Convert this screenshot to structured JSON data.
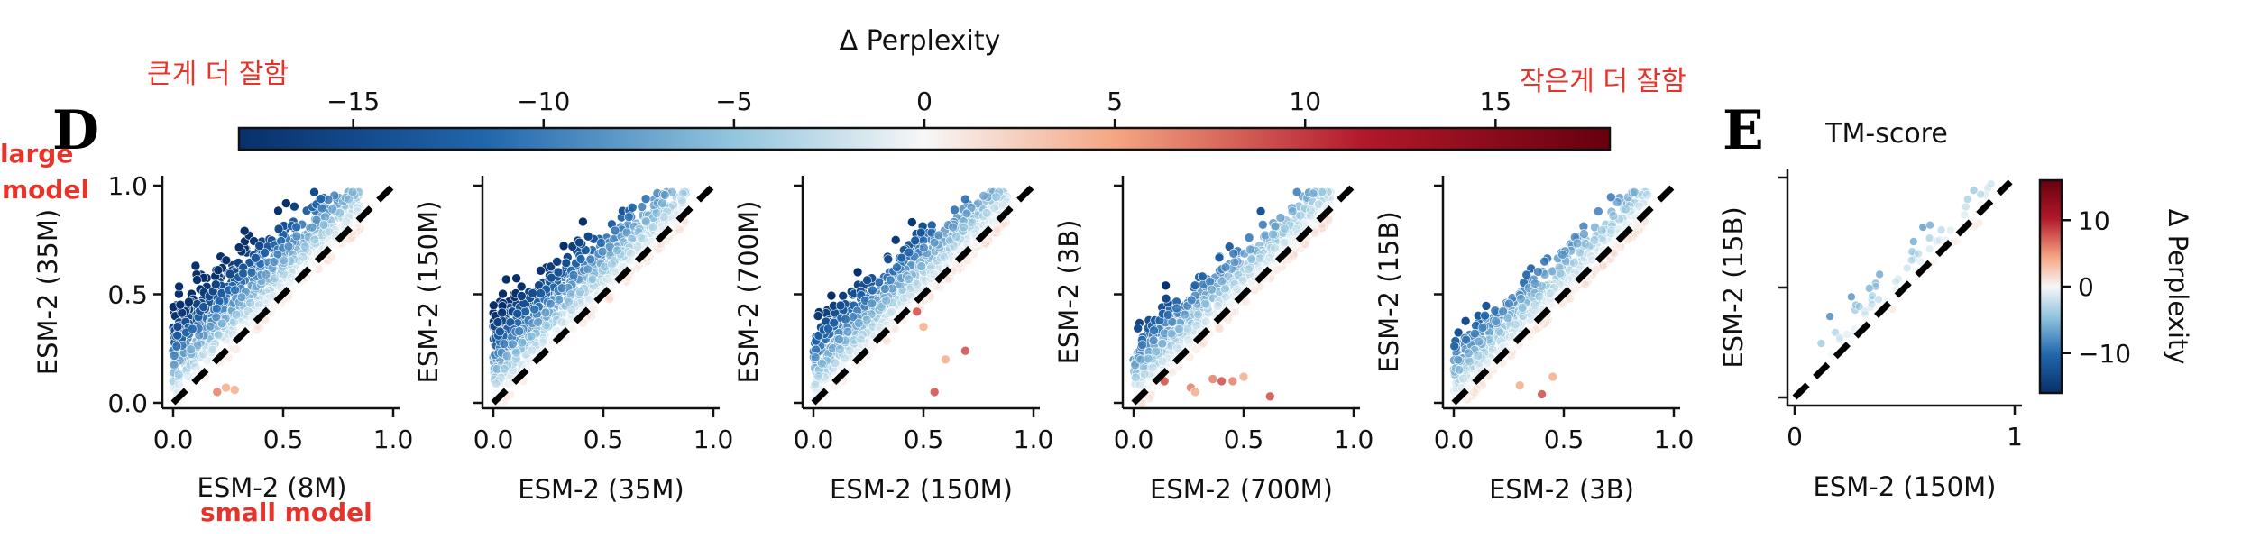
{
  "annotations": {
    "large_better": "큰게 더 잘함",
    "small_better": "작은게 더 잘함",
    "large_model": "large\nmodel",
    "large_model_line1": "large",
    "large_model_line2": "model",
    "small_model": "small model"
  },
  "panel_letters": {
    "d": "D",
    "e": "E"
  },
  "colors": {
    "cmap_low": "#08306b",
    "cmap_mid": "#f7f7f7",
    "cmap_high": "#67000d",
    "annotation": "#e8332a",
    "diagonal": "#000000"
  },
  "chart_data": [
    {
      "type": "colorbar",
      "name": "top-colorbar",
      "title": "Δ Perplexity",
      "range": [
        -18,
        18
      ],
      "ticks": [
        -15,
        -10,
        -5,
        0,
        5,
        10,
        15
      ],
      "tick_labels": [
        "−15",
        "−10",
        "−5",
        "0",
        "5",
        "10",
        "15"
      ]
    },
    {
      "type": "scatter",
      "name": "scatter-8m-vs-35m",
      "xlabel": "ESM-2 (8M)",
      "ylabel": "ESM-2 (35M)",
      "xlim": [
        -0.05,
        1.05
      ],
      "ylim": [
        -0.05,
        1.0
      ],
      "xticks": [
        0,
        0.5,
        1.0
      ],
      "xtick_labels": [
        "0.0",
        "0.5",
        "1.0"
      ],
      "yticks": [
        0,
        0.5,
        1.0
      ],
      "ytick_labels": [
        "0.0",
        "0.5",
        "1.0"
      ],
      "diagonal": true,
      "cloud": {
        "n": 950,
        "xmax": 0.85,
        "lift": 0.42,
        "spread": 0.22,
        "seed": 11
      },
      "outliers": [
        [
          0.2,
          0.05,
          3
        ],
        [
          0.24,
          0.07,
          2
        ],
        [
          0.28,
          0.06,
          2
        ]
      ]
    },
    {
      "type": "scatter",
      "name": "scatter-35m-vs-150m",
      "xlabel": "ESM-2 (35M)",
      "ylabel": "ESM-2 (150M)",
      "xlim": [
        -0.05,
        1.05
      ],
      "ylim": [
        -0.05,
        1.0
      ],
      "xticks": [
        0,
        0.5,
        1.0
      ],
      "xtick_labels": [
        "0.0",
        "0.5",
        "1.0"
      ],
      "yticks": [
        0,
        0.5,
        1.0
      ],
      "ytick_labels": [],
      "diagonal": true,
      "cloud": {
        "n": 1000,
        "xmax": 0.88,
        "lift": 0.36,
        "spread": 0.2,
        "seed": 23
      },
      "outliers": []
    },
    {
      "type": "scatter",
      "name": "scatter-150m-vs-700m",
      "xlabel": "ESM-2 (150M)",
      "ylabel": "ESM-2 (700M)",
      "xlim": [
        -0.05,
        1.05
      ],
      "ylim": [
        -0.05,
        1.0
      ],
      "xticks": [
        0,
        0.5,
        1.0
      ],
      "xtick_labels": [
        "0.0",
        "0.5",
        "1.0"
      ],
      "yticks": [
        0,
        0.5,
        1.0
      ],
      "ytick_labels": [],
      "diagonal": true,
      "cloud": {
        "n": 950,
        "xmax": 0.88,
        "lift": 0.3,
        "spread": 0.2,
        "seed": 37
      },
      "outliers": [
        [
          0.47,
          0.42,
          4
        ],
        [
          0.55,
          0.05,
          4
        ],
        [
          0.69,
          0.24,
          4
        ],
        [
          0.5,
          0.35,
          2
        ],
        [
          0.6,
          0.2,
          2
        ]
      ]
    },
    {
      "type": "scatter",
      "name": "scatter-700m-vs-3b",
      "xlabel": "ESM-2 (700M)",
      "ylabel": "ESM-2 (3B)",
      "xlim": [
        -0.05,
        1.05
      ],
      "ylim": [
        -0.05,
        1.0
      ],
      "xticks": [
        0,
        0.5,
        1.0
      ],
      "xtick_labels": [
        "0.0",
        "0.5",
        "1.0"
      ],
      "yticks": [
        0,
        0.5,
        1.0
      ],
      "ytick_labels": [],
      "diagonal": true,
      "cloud": {
        "n": 780,
        "xmax": 0.9,
        "lift": 0.22,
        "spread": 0.22,
        "seed": 41
      },
      "outliers": [
        [
          0.14,
          0.1,
          4
        ],
        [
          0.26,
          0.07,
          3
        ],
        [
          0.36,
          0.11,
          3
        ],
        [
          0.4,
          0.1,
          4
        ],
        [
          0.45,
          0.1,
          3
        ],
        [
          0.62,
          0.03,
          4
        ],
        [
          0.28,
          0.05,
          2
        ],
        [
          0.5,
          0.12,
          2
        ]
      ]
    },
    {
      "type": "scatter",
      "name": "scatter-3b-vs-15b",
      "xlabel": "ESM-2 (3B)",
      "ylabel": "ESM-2 (15B)",
      "xlim": [
        -0.05,
        1.05
      ],
      "ylim": [
        -0.05,
        1.0
      ],
      "xticks": [
        0,
        0.5,
        1.0
      ],
      "xtick_labels": [
        "0.0",
        "0.5",
        "1.0"
      ],
      "yticks": [
        0,
        0.5,
        1.0
      ],
      "ytick_labels": [],
      "diagonal": true,
      "cloud": {
        "n": 880,
        "xmax": 0.88,
        "lift": 0.2,
        "spread": 0.2,
        "seed": 53
      },
      "outliers": [
        [
          0.4,
          0.04,
          4
        ],
        [
          0.3,
          0.08,
          2
        ],
        [
          0.45,
          0.12,
          2
        ]
      ]
    },
    {
      "type": "scatter",
      "name": "scatter-tm-score",
      "title": "TM-score",
      "xlabel": "ESM-2 (150M)",
      "ylabel": "ESM-2 (15B)",
      "xlim": [
        -0.03,
        1.03
      ],
      "ylim": [
        -0.03,
        1.03
      ],
      "xticks": [
        0,
        1
      ],
      "xtick_labels": [
        "0",
        "1"
      ],
      "yticks": [
        0,
        0.5,
        1
      ],
      "ytick_labels": [],
      "diagonal": true,
      "cloud": {
        "n": 80,
        "xmax": 0.9,
        "lift": 0.18,
        "spread": 0.14,
        "seed": 67,
        "xmin": 0.12
      },
      "outliers": []
    },
    {
      "type": "colorbar",
      "name": "side-colorbar",
      "title": "Δ Perplexity",
      "range": [
        -16,
        16
      ],
      "ticks": [
        -10,
        0,
        10
      ],
      "tick_labels": [
        "−10",
        "0",
        "10"
      ]
    }
  ]
}
